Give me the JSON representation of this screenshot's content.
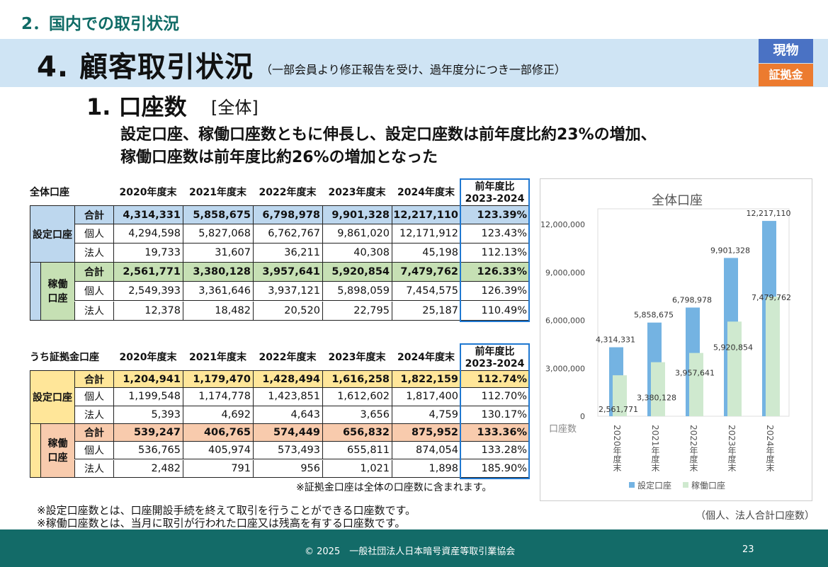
{
  "section_title": "2．国内での取引状況",
  "header": {
    "title": "4. 顧客取引状況",
    "note": "（一部会員より修正報告を受け、過年度分につき一部修正）",
    "badge_spot": "現物",
    "badge_margin": "証拠金"
  },
  "subtitle": {
    "title": "1. 口座数",
    "scope": "[全体]"
  },
  "lead": [
    "設定口座、稼働口座数ともに伸長し、設定口座数は前年度比約23%の増加、",
    "稼働口座数は前年度比約26%の増加となった"
  ],
  "tables": [
    {
      "title": "全体口座",
      "columns": [
        "2020年度末",
        "2021年度末",
        "2022年度末",
        "2023年度末",
        "2024年度末",
        "前年度比\n2023-2024"
      ],
      "groups": [
        {
          "label": "設定口座",
          "color": "#bdd7ee",
          "rows": [
            {
              "label": "合計",
              "values": [
                "4,314,331",
                "5,858,675",
                "6,798,978",
                "9,901,328",
                "12,217,110",
                "123.39%"
              ]
            },
            {
              "label": "個人",
              "values": [
                "4,294,598",
                "5,827,068",
                "6,762,767",
                "9,861,020",
                "12,171,912",
                "123.43%"
              ]
            },
            {
              "label": "法人",
              "values": [
                "19,733",
                "31,607",
                "36,211",
                "40,308",
                "45,198",
                "112.13%"
              ]
            }
          ]
        },
        {
          "label": "稼働\n口座",
          "color": "#c6e0b4",
          "rows": [
            {
              "label": "合計",
              "values": [
                "2,561,771",
                "3,380,128",
                "3,957,641",
                "5,920,854",
                "7,479,762",
                "126.33%"
              ]
            },
            {
              "label": "個人",
              "values": [
                "2,549,393",
                "3,361,646",
                "3,937,121",
                "5,898,059",
                "7,454,575",
                "126.39%"
              ]
            },
            {
              "label": "法人",
              "values": [
                "12,378",
                "18,482",
                "20,520",
                "22,795",
                "25,187",
                "110.49%"
              ]
            }
          ]
        }
      ]
    },
    {
      "title": "うち証拠金口座",
      "columns": [
        "2020年度末",
        "2021年度末",
        "2022年度末",
        "2023年度末",
        "2024年度末",
        "前年度比\n2023-2024"
      ],
      "groups": [
        {
          "label": "設定口座",
          "color": "#ffe699",
          "rows": [
            {
              "label": "合計",
              "values": [
                "1,204,941",
                "1,179,470",
                "1,428,494",
                "1,616,258",
                "1,822,159",
                "112.74%"
              ]
            },
            {
              "label": "個人",
              "values": [
                "1,199,548",
                "1,174,778",
                "1,423,851",
                "1,612,602",
                "1,817,400",
                "112.70%"
              ]
            },
            {
              "label": "法人",
              "values": [
                "5,393",
                "4,692",
                "4,643",
                "3,656",
                "4,759",
                "130.17%"
              ]
            }
          ]
        },
        {
          "label": "稼働\n口座",
          "color": "#f8cbad",
          "rows": [
            {
              "label": "合計",
              "values": [
                "539,247",
                "406,765",
                "574,449",
                "656,832",
                "875,952",
                "133.36%"
              ]
            },
            {
              "label": "個人",
              "values": [
                "536,765",
                "405,974",
                "573,493",
                "655,811",
                "874,054",
                "133.28%"
              ]
            },
            {
              "label": "法人",
              "values": [
                "2,482",
                "791",
                "956",
                "1,021",
                "1,898",
                "185.90%"
              ]
            }
          ]
        }
      ]
    }
  ],
  "table_note": "※証拠金口座は全体の口座数に含まれます。",
  "footnotes": [
    "※設定口座数とは、口座開設手続を終えて取引を行うことができる口座数です。",
    "※稼働口座数とは、当月に取引が行われた口座又は残高を有する口座数です。"
  ],
  "chart_note": "（個人、法人合計口座数）",
  "chart_data": {
    "type": "bar",
    "title": "全体口座",
    "ylabel": "口座数",
    "categories": [
      "2020年度末",
      "2021年度末",
      "2022年度末",
      "2023年度末",
      "2024年度末"
    ],
    "yticks": [
      "0",
      "3,000,000",
      "6,000,000",
      "9,000,000",
      "12,000,000"
    ],
    "ylim": [
      0,
      13000000
    ],
    "legend_position": "bottom",
    "series": [
      {
        "name": "設定口座",
        "color": "#74b3e2",
        "values": [
          4314331,
          5858675,
          6798978,
          9901328,
          12217110
        ],
        "labels": [
          "4,314,331",
          "5,858,675",
          "6,798,978",
          "9,901,328",
          "12,217,110"
        ]
      },
      {
        "name": "稼働口座",
        "color": "#cfe9cf",
        "values": [
          2561771,
          3380128,
          3957641,
          5920854,
          7479762
        ],
        "labels": [
          "2,561,771",
          "3,380,128",
          "3,957,641",
          "5,920,854",
          "7,479,762"
        ]
      }
    ]
  },
  "footer": {
    "copyright": "© 2025　一般社団法人日本暗号資産等取引業協会",
    "page": "23"
  }
}
